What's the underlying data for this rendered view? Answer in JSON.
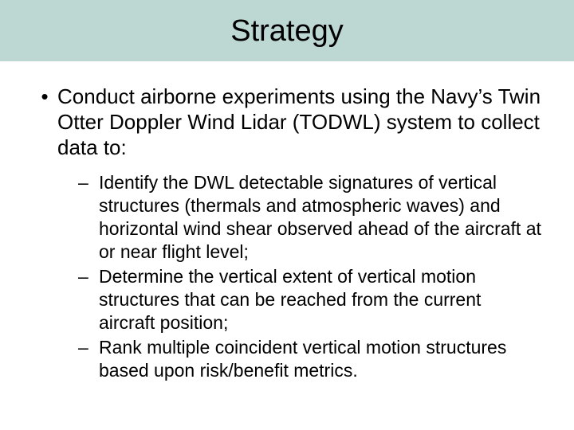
{
  "slide": {
    "title": "Strategy",
    "title_bar_color": "#bdd7d3",
    "title_fontsize": 38,
    "background_color": "#ffffff",
    "text_color": "#000000",
    "main_bullet": {
      "marker": "•",
      "text": "Conduct airborne experiments using the Navy’s Twin Otter Doppler Wind Lidar (TODWL) system to collect data to:",
      "fontsize": 26
    },
    "sub_bullets": [
      {
        "marker": "–",
        "text": "Identify the DWL detectable signatures of vertical structures (thermals and atmospheric waves) and horizontal wind shear observed ahead of the aircraft at or near flight level;"
      },
      {
        "marker": "–",
        "text": "Determine the vertical extent of vertical motion structures that can be reached from the current aircraft position;"
      },
      {
        "marker": "–",
        "text": "Rank multiple coincident vertical motion structures based upon risk/benefit metrics."
      }
    ],
    "sub_fontsize": 23
  }
}
